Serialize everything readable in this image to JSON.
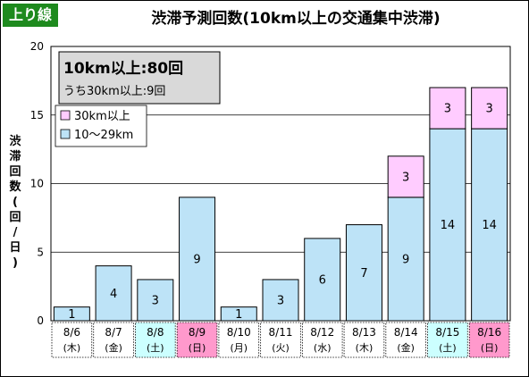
{
  "header": {
    "direction_badge": "上り線",
    "title": "渋滞予測回数(10km以上の交通集中渋滞)"
  },
  "summary": {
    "total_line": "10km以上:80回",
    "sub_line": "うち30km以上:9回"
  },
  "chart_data": {
    "type": "bar",
    "stacked": true,
    "ylabel": "渋滞回数(回/日)",
    "ylim": [
      0,
      20
    ],
    "yticks": [
      0,
      5,
      10,
      15,
      20
    ],
    "grid": true,
    "legend_position": "top-left",
    "categories": [
      "8/6",
      "8/7",
      "8/8",
      "8/9",
      "8/10",
      "8/11",
      "8/12",
      "8/13",
      "8/14",
      "8/15",
      "8/16"
    ],
    "weekdays": [
      "(木)",
      "(金)",
      "(土)",
      "(日)",
      "(月)",
      "(火)",
      "(水)",
      "(木)",
      "(金)",
      "(土)",
      "(日)"
    ],
    "day_colors": [
      "#ffffff",
      "#ffffff",
      "#ccffff",
      "#ff99cc",
      "#ffffff",
      "#ffffff",
      "#ffffff",
      "#ffffff",
      "#ffffff",
      "#ccffff",
      "#ff99cc"
    ],
    "series": [
      {
        "name": "10〜29km",
        "color": "#bde3f7",
        "values": [
          1,
          4,
          3,
          9,
          1,
          3,
          6,
          7,
          9,
          14,
          14
        ]
      },
      {
        "name": "30km以上",
        "color": "#ffccff",
        "values": [
          0,
          0,
          0,
          0,
          0,
          0,
          0,
          0,
          3,
          3,
          3
        ]
      }
    ]
  }
}
